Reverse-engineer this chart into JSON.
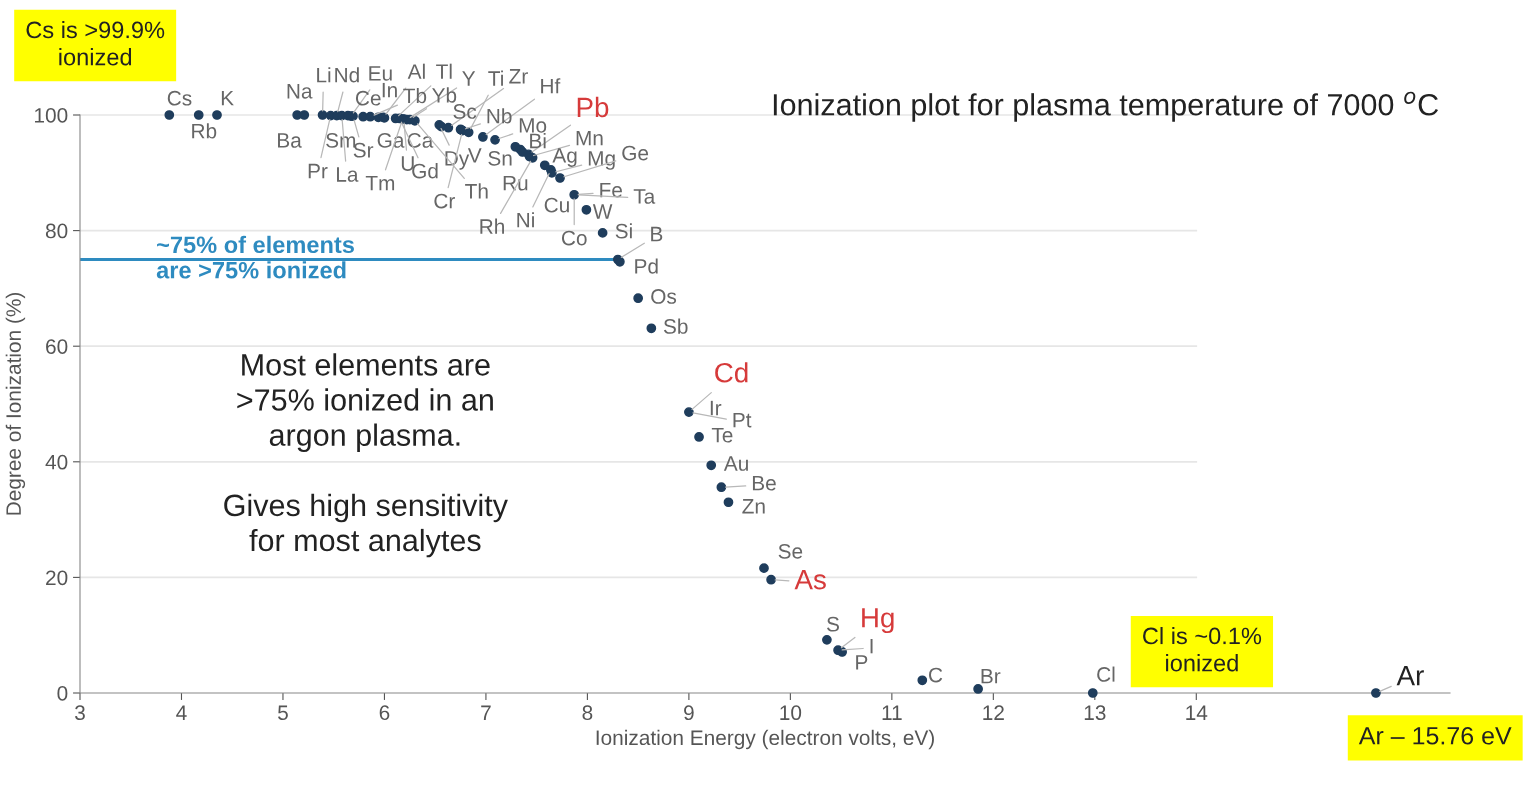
{
  "chart_data": {
    "type": "scatter",
    "title": "Ionization plot for plasma temperature of 7000 $^{o}$C",
    "xlabel": "Ionization Energy (electron volts, eV)",
    "ylabel": "Degree of Ionization (%)",
    "xlim": [
      3,
      16.5
    ],
    "ylim": [
      0,
      100
    ],
    "xticks": [
      3,
      4,
      5,
      6,
      7,
      8,
      9,
      10,
      11,
      12,
      13,
      14
    ],
    "yticks": [
      0,
      20,
      40,
      60,
      80,
      100
    ],
    "grid": "y",
    "marker": "circle",
    "legend": false,
    "series": [
      {
        "color": "#1f3d5c",
        "x": [
          3.88,
          4.17,
          4.35,
          5.14,
          5.21,
          5.39,
          5.47,
          5.53,
          5.58,
          5.64,
          5.67,
          5.69,
          5.79,
          5.86,
          5.94,
          5.99,
          6.0,
          6.11,
          6.15,
          6.18,
          6.19,
          6.22,
          6.25,
          6.3,
          6.54,
          6.56,
          6.63,
          6.75,
          6.76,
          6.77,
          6.83,
          6.97,
          7.09,
          7.29,
          7.34,
          7.36,
          7.42,
          7.43,
          7.46,
          7.58,
          7.64,
          7.65,
          7.73,
          7.87,
          7.99,
          8.15,
          8.3,
          8.32,
          8.5,
          8.63,
          9.0,
          9.1,
          9.22,
          9.32,
          9.39,
          9.74,
          9.81,
          10.36,
          10.47,
          10.51,
          11.3,
          11.85,
          12.98,
          15.77
        ],
        "values": [
          100,
          100,
          100,
          100,
          100,
          100,
          99.9,
          99.9,
          99.9,
          99.9,
          99.8,
          99.8,
          99.7,
          99.7,
          99.6,
          99.6,
          99.5,
          99.4,
          99.4,
          99.3,
          99.3,
          99.2,
          99.2,
          99,
          98.3,
          98,
          97.8,
          97.5,
          97.4,
          97.3,
          97,
          96.2,
          95.7,
          94.5,
          94,
          93.6,
          93.2,
          92.8,
          92.6,
          91.3,
          90.5,
          90,
          89.1,
          86.2,
          83.6,
          79.6,
          75,
          74.6,
          68.3,
          63.1,
          48.6,
          44.3,
          39.4,
          35.6,
          33,
          21.6,
          19.6,
          9.2,
          7.4,
          7.1,
          2.2,
          0.7,
          0,
          0
        ]
      }
    ],
    "ref_lines": [
      {
        "axis": "y",
        "value": 75,
        "label": "~75% of elements\nare >75% ionized",
        "color": "#2e8bc0"
      }
    ],
    "annotations": [
      "Cs is >99.9%\nionized",
      "Cl is ~0.1%\nionized",
      "Ar – 15.76 eV",
      "Most elements are\n>75% ionized in an\nargon plasma.\n\nGives high sensitivity\nfor most analytes",
      {
        "text": "Cs",
        "x": 3.88,
        "y": 100
      },
      {
        "text": "Rb",
        "x": 4.17,
        "y": 100
      },
      {
        "text": "K",
        "x": 4.35,
        "y": 100
      },
      {
        "text": "Na",
        "x": 5.14,
        "y": 100
      },
      {
        "text": "Li",
        "x": 5.39,
        "y": 100
      },
      {
        "text": "Nd",
        "x": 5.53,
        "y": 99.9
      },
      {
        "text": "Eu",
        "x": 5.67,
        "y": 99.8
      },
      {
        "text": "Al",
        "x": 5.99,
        "y": 99.6
      },
      {
        "text": "Tl",
        "x": 6.11,
        "y": 99.4
      },
      {
        "text": "Y",
        "x": 6.22,
        "y": 99.2
      },
      {
        "text": "Ti",
        "x": 6.83,
        "y": 97
      },
      {
        "text": "Zr",
        "x": 6.63,
        "y": 97.8
      },
      {
        "text": "Hf",
        "x": 6.97,
        "y": 96.2
      },
      {
        "text": "Pb",
        "x": 7.42,
        "y": 93.2
      },
      {
        "text": "Ce",
        "x": 5.58,
        "y": 99.9
      },
      {
        "text": "In",
        "x": 5.79,
        "y": 99.7
      },
      {
        "text": "Tb",
        "x": 5.86,
        "y": 99.7
      },
      {
        "text": "Yb",
        "x": 6.25,
        "y": 99.2
      },
      {
        "text": "Sc",
        "x": 6.56,
        "y": 98
      },
      {
        "text": "Nb",
        "x": 6.76,
        "y": 97.4
      },
      {
        "text": "Mo",
        "x": 7.09,
        "y": 95.7
      },
      {
        "text": "Bi",
        "x": 7.29,
        "y": 94.5
      },
      {
        "text": "Mn",
        "x": 7.43,
        "y": 92.8
      },
      {
        "text": "Ag",
        "x": 7.58,
        "y": 91.3
      },
      {
        "text": "Mg",
        "x": 7.65,
        "y": 90
      },
      {
        "text": "Ge",
        "x": 7.73,
        "y": 89.1
      },
      {
        "text": "Fe",
        "x": 7.87,
        "y": 86.2
      },
      {
        "text": "Ta",
        "x": 7.87,
        "y": 86.2
      },
      {
        "text": "Cu",
        "x": 7.73,
        "y": 89.1
      },
      {
        "text": "W",
        "x": 7.99,
        "y": 83.6
      },
      {
        "text": "Co",
        "x": 7.87,
        "y": 86.2
      },
      {
        "text": "Si",
        "x": 8.15,
        "y": 79.6
      },
      {
        "text": "B",
        "x": 8.3,
        "y": 75
      },
      {
        "text": "Pd",
        "x": 8.32,
        "y": 74.6
      },
      {
        "text": "Os",
        "x": 8.5,
        "y": 68.3
      },
      {
        "text": "Sb",
        "x": 8.63,
        "y": 63.1
      },
      {
        "text": "Ba",
        "x": 5.21,
        "y": 100
      },
      {
        "text": "Sm",
        "x": 5.64,
        "y": 99.9
      },
      {
        "text": "Sr",
        "x": 5.69,
        "y": 99.8
      },
      {
        "text": "Ga",
        "x": 6.0,
        "y": 99.5
      },
      {
        "text": "Ca",
        "x": 6.15,
        "y": 99.4
      },
      {
        "text": "Pr",
        "x": 5.47,
        "y": 99.9
      },
      {
        "text": "La",
        "x": 5.58,
        "y": 99.9
      },
      {
        "text": "Tm",
        "x": 6.18,
        "y": 99.3
      },
      {
        "text": "U",
        "x": 6.19,
        "y": 99.3
      },
      {
        "text": "Gd",
        "x": 6.15,
        "y": 99.4
      },
      {
        "text": "Dy",
        "x": 6.54,
        "y": 98.3
      },
      {
        "text": "V",
        "x": 6.75,
        "y": 97.5
      },
      {
        "text": "Sn",
        "x": 7.34,
        "y": 94
      },
      {
        "text": "Ru",
        "x": 7.36,
        "y": 93.6
      },
      {
        "text": "Cr",
        "x": 6.77,
        "y": 97.3
      },
      {
        "text": "Th",
        "x": 6.3,
        "y": 99
      },
      {
        "text": "Rh",
        "x": 7.46,
        "y": 92.6
      },
      {
        "text": "Ni",
        "x": 7.64,
        "y": 90.5
      },
      {
        "text": "Cd",
        "x": 9.0,
        "y": 48.6
      },
      {
        "text": "Ir",
        "x": 9.0,
        "y": 48.6
      },
      {
        "text": "Pt",
        "x": 9.0,
        "y": 48.6
      },
      {
        "text": "Te",
        "x": 9.1,
        "y": 44.3
      },
      {
        "text": "Au",
        "x": 9.22,
        "y": 39.4
      },
      {
        "text": "Be",
        "x": 9.32,
        "y": 35.6
      },
      {
        "text": "Zn",
        "x": 9.39,
        "y": 33
      },
      {
        "text": "Se",
        "x": 9.74,
        "y": 21.6
      },
      {
        "text": "As",
        "x": 9.81,
        "y": 19.6
      },
      {
        "text": "Hg",
        "x": 10.47,
        "y": 7.4
      },
      {
        "text": "S",
        "x": 10.36,
        "y": 9.2
      },
      {
        "text": "I",
        "x": 10.47,
        "y": 7.4
      },
      {
        "text": "P",
        "x": 10.51,
        "y": 7.1
      },
      {
        "text": "C",
        "x": 11.3,
        "y": 2.2
      },
      {
        "text": "Br",
        "x": 11.85,
        "y": 0.7
      },
      {
        "text": "Cl",
        "x": 12.98,
        "y": 0
      },
      {
        "text": "Ar",
        "x": 15.77,
        "y": 0
      }
    ]
  }
}
